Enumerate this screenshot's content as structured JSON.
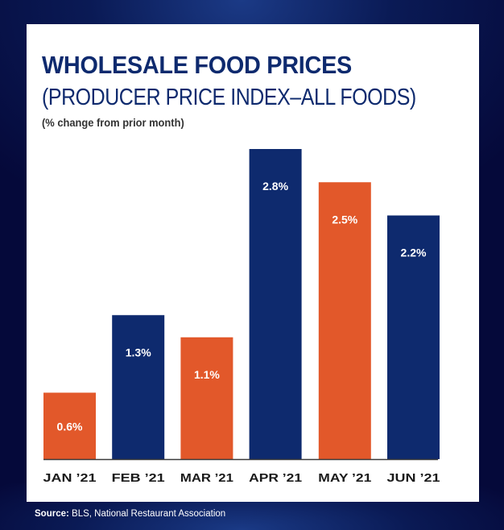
{
  "colors": {
    "navy": "#0e2a6e",
    "orange": "#e2582a",
    "label": "#1a1a1a",
    "value_text": "#ffffff"
  },
  "chart_data": {
    "type": "bar",
    "title": "WHOLESALE FOOD PRICES",
    "subtitle": "(PRODUCER PRICE INDEX–ALL FOODS)",
    "note": "(% change from prior month)",
    "xlabel": "",
    "ylabel": "",
    "ylim": [
      0,
      3.2
    ],
    "grid": false,
    "categories": [
      "JAN ’21",
      "FEB ’21",
      "MAR ’21",
      "APR ’21",
      "MAY ’21",
      "JUN ’21"
    ],
    "values": [
      0.6,
      1.3,
      1.1,
      2.8,
      2.5,
      2.2
    ],
    "value_labels": [
      "0.6%",
      "1.3%",
      "1.1%",
      "2.8%",
      "2.5%",
      "2.2%"
    ],
    "bar_colors": [
      "orange",
      "navy",
      "orange",
      "navy",
      "orange",
      "navy"
    ]
  },
  "footer": {
    "source_label": "Source:",
    "source_text": " BLS, National Restaurant Association"
  }
}
